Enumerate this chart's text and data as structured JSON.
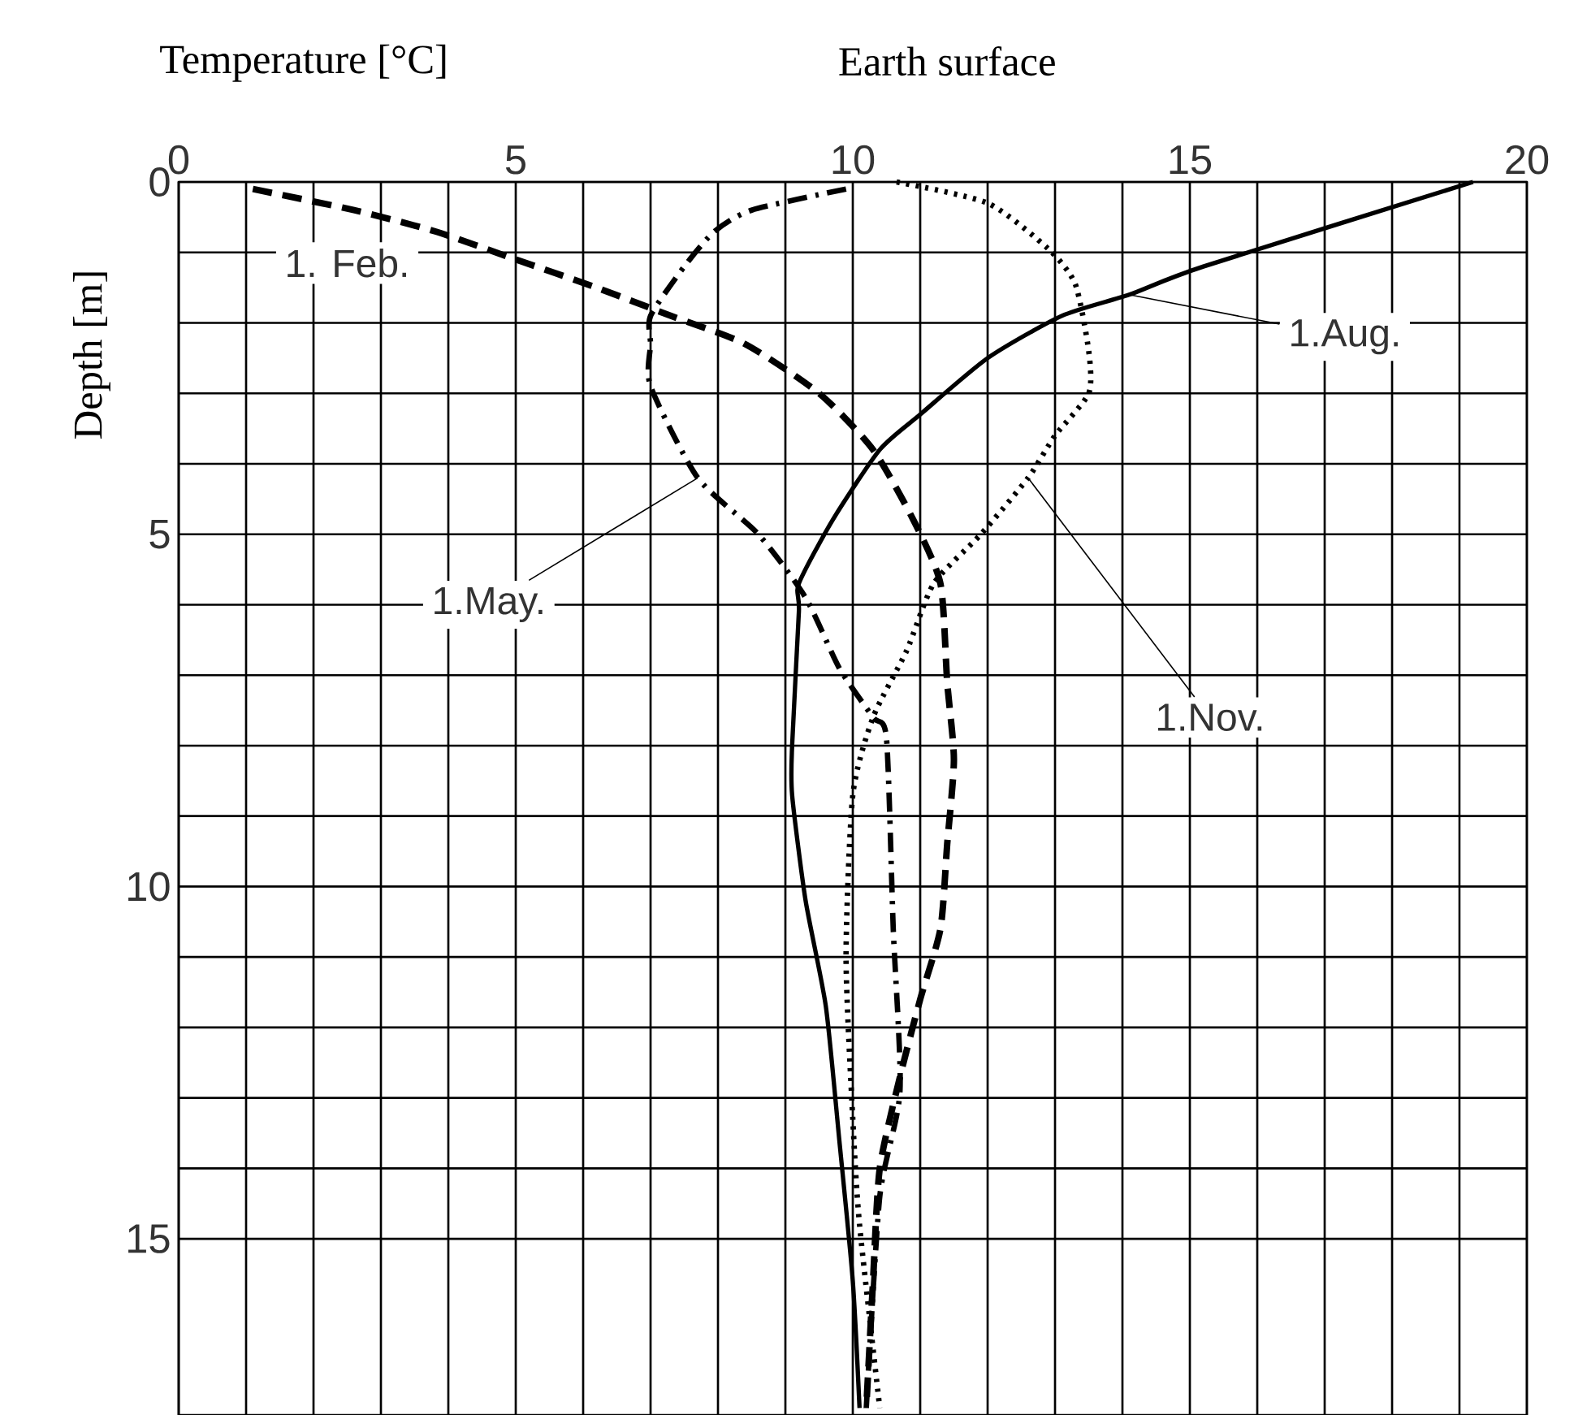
{
  "chart_data": {
    "type": "line",
    "xlabel": "Temperature [°C]",
    "ylabel": "Depth [m]",
    "annotations": [
      "Earth surface"
    ],
    "xlim": [
      0,
      20
    ],
    "xticks": [
      0,
      5,
      10,
      15,
      20
    ],
    "ylim": [
      17.5,
      0
    ],
    "yticks": [
      0,
      5,
      10,
      15
    ],
    "grid": true,
    "series": [
      {
        "name": "1. Feb.",
        "color": "#000000",
        "line_style": "dashed",
        "x": [
          1.1,
          2.6,
          3.8,
          5.0,
          6.2,
          7.3,
          8.4,
          9.5,
          10.3,
          10.9,
          11.3,
          11.4,
          11.5,
          11.4,
          11.3,
          11.0,
          10.7,
          10.4,
          10.3,
          10.2
        ],
        "values": [
          0.1,
          0.4,
          0.7,
          1.1,
          1.5,
          1.9,
          2.3,
          3.0,
          3.8,
          4.8,
          5.7,
          7.1,
          8.2,
          9.4,
          10.6,
          11.6,
          12.7,
          14.0,
          15.6,
          17.4
        ]
      },
      {
        "name": "1.May.",
        "color": "#000000",
        "line_style": "dashdot",
        "x": [
          9.9,
          8.5,
          7.95,
          7.5,
          7.0,
          7.0,
          7.0,
          7.7,
          8.6,
          9.3,
          9.8,
          10.3,
          10.5,
          10.6,
          10.7,
          10.4,
          10.2
        ],
        "values": [
          0.1,
          0.4,
          0.7,
          1.2,
          1.9,
          2.3,
          2.9,
          4.2,
          5.0,
          5.9,
          6.9,
          7.6,
          7.9,
          10.6,
          12.9,
          14.4,
          17.4
        ]
      },
      {
        "name": "1.Aug.",
        "color": "#000000",
        "line_style": "solid",
        "x": [
          19.2,
          15.2,
          14.1,
          13.1,
          12.0,
          11.0,
          10.4,
          9.7,
          9.2,
          9.2,
          9.1,
          9.1,
          9.3,
          9.6,
          9.8,
          10.0,
          10.1
        ],
        "values": [
          0,
          1.2,
          1.6,
          1.9,
          2.5,
          3.3,
          3.8,
          4.8,
          5.7,
          6.1,
          8.0,
          8.7,
          10.2,
          11.7,
          13.6,
          15.6,
          17.4
        ]
      },
      {
        "name": "1.Nov.",
        "color": "#000000",
        "line_style": "dotted",
        "x": [
          10.65,
          12.0,
          12.9,
          13.3,
          13.5,
          13.5,
          13.0,
          12.6,
          11.9,
          11.2,
          10.8,
          10.3,
          10.0,
          9.9,
          10.0,
          10.1,
          10.4
        ],
        "values": [
          0,
          0.3,
          0.95,
          1.45,
          2.4,
          3.0,
          3.6,
          4.2,
          5.0,
          5.7,
          6.65,
          7.6,
          8.7,
          11.0,
          13.3,
          14.8,
          17.4
        ]
      }
    ]
  }
}
